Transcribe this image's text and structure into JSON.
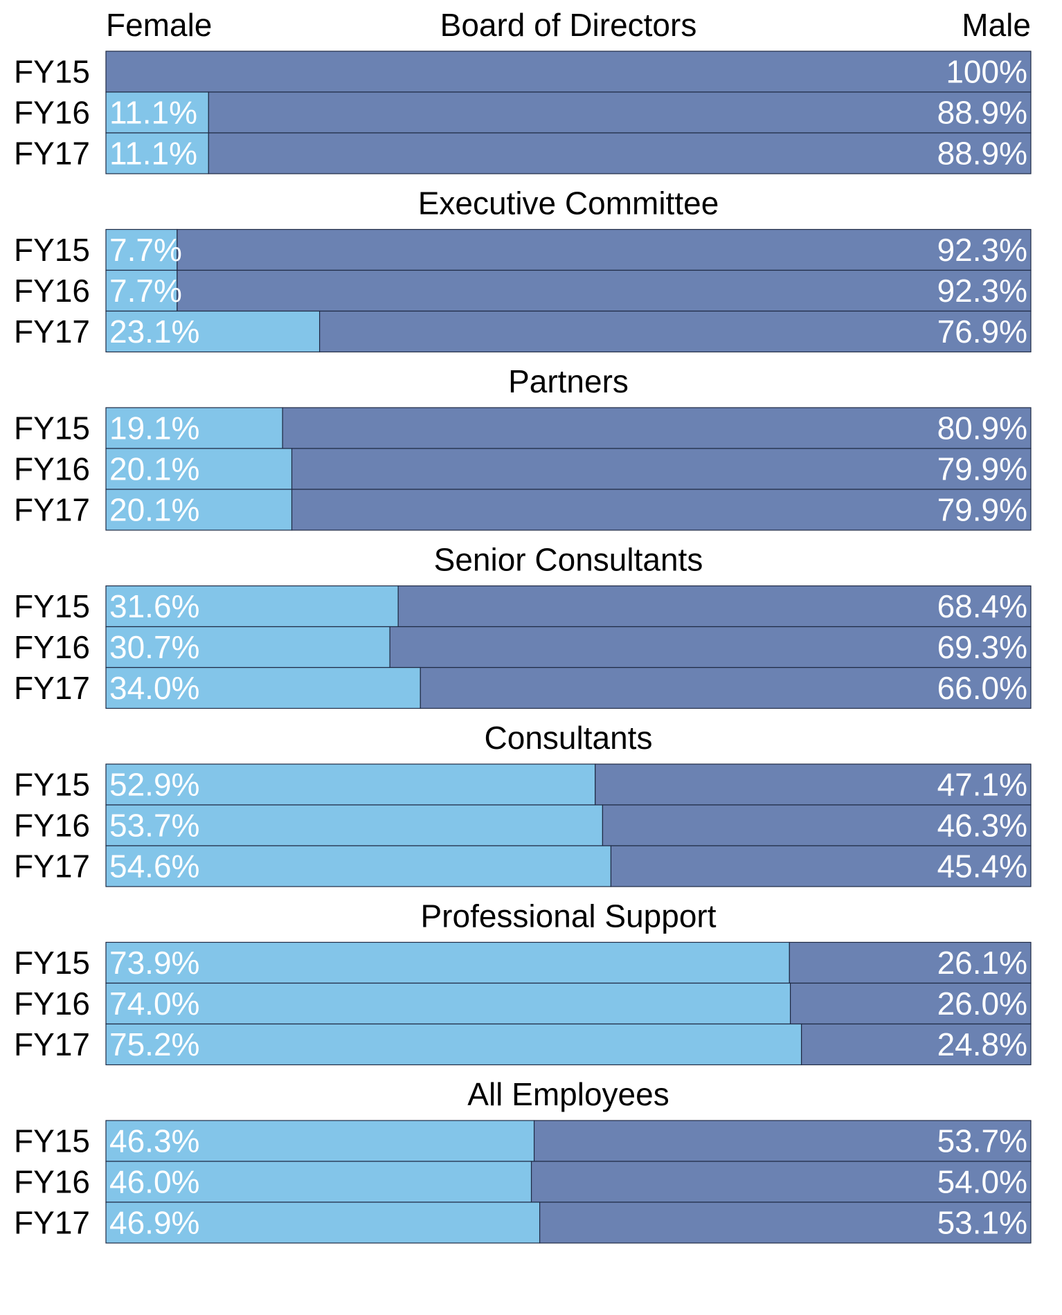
{
  "header": {
    "left_label": "Female",
    "right_label": "Male"
  },
  "colors": {
    "female": "#83c5e9",
    "male": "#6b82b2",
    "border": "#1f2a44",
    "value_text": "#ffffff",
    "label_text": "#000000"
  },
  "chart_data": {
    "type": "bar",
    "stacked": "100%",
    "orientation": "horizontal",
    "series_names": [
      "Female",
      "Male"
    ],
    "groups": [
      {
        "title": "Board of Directors",
        "rows": [
          {
            "category": "FY15",
            "female": 0,
            "male": 100,
            "female_label": "",
            "male_label": "100%"
          },
          {
            "category": "FY16",
            "female": 11.1,
            "male": 88.9,
            "female_label": "11.1%",
            "male_label": "88.9%"
          },
          {
            "category": "FY17",
            "female": 11.1,
            "male": 88.9,
            "female_label": "11.1%",
            "male_label": "88.9%"
          }
        ]
      },
      {
        "title": "Executive Committee",
        "rows": [
          {
            "category": "FY15",
            "female": 7.7,
            "male": 92.3,
            "female_label": "7.7%",
            "male_label": "92.3%"
          },
          {
            "category": "FY16",
            "female": 7.7,
            "male": 92.3,
            "female_label": "7.7%",
            "male_label": "92.3%"
          },
          {
            "category": "FY17",
            "female": 23.1,
            "male": 76.9,
            "female_label": "23.1%",
            "male_label": "76.9%"
          }
        ]
      },
      {
        "title": "Partners",
        "rows": [
          {
            "category": "FY15",
            "female": 19.1,
            "male": 80.9,
            "female_label": "19.1%",
            "male_label": "80.9%"
          },
          {
            "category": "FY16",
            "female": 20.1,
            "male": 79.9,
            "female_label": "20.1%",
            "male_label": "79.9%"
          },
          {
            "category": "FY17",
            "female": 20.1,
            "male": 79.9,
            "female_label": "20.1%",
            "male_label": "79.9%"
          }
        ]
      },
      {
        "title": "Senior Consultants",
        "rows": [
          {
            "category": "FY15",
            "female": 31.6,
            "male": 68.4,
            "female_label": "31.6%",
            "male_label": "68.4%"
          },
          {
            "category": "FY16",
            "female": 30.7,
            "male": 69.3,
            "female_label": "30.7%",
            "male_label": "69.3%"
          },
          {
            "category": "FY17",
            "female": 34.0,
            "male": 66.0,
            "female_label": "34.0%",
            "male_label": "66.0%"
          }
        ]
      },
      {
        "title": "Consultants",
        "rows": [
          {
            "category": "FY15",
            "female": 52.9,
            "male": 47.1,
            "female_label": "52.9%",
            "male_label": "47.1%"
          },
          {
            "category": "FY16",
            "female": 53.7,
            "male": 46.3,
            "female_label": "53.7%",
            "male_label": "46.3%"
          },
          {
            "category": "FY17",
            "female": 54.6,
            "male": 45.4,
            "female_label": "54.6%",
            "male_label": "45.4%"
          }
        ]
      },
      {
        "title": "Professional Support",
        "rows": [
          {
            "category": "FY15",
            "female": 73.9,
            "male": 26.1,
            "female_label": "73.9%",
            "male_label": "26.1%"
          },
          {
            "category": "FY16",
            "female": 74.0,
            "male": 26.0,
            "female_label": "74.0%",
            "male_label": "26.0%"
          },
          {
            "category": "FY17",
            "female": 75.2,
            "male": 24.8,
            "female_label": "75.2%",
            "male_label": "24.8%"
          }
        ]
      },
      {
        "title": "All Employees",
        "rows": [
          {
            "category": "FY15",
            "female": 46.3,
            "male": 53.7,
            "female_label": "46.3%",
            "male_label": "53.7%"
          },
          {
            "category": "FY16",
            "female": 46.0,
            "male": 54.0,
            "female_label": "46.0%",
            "male_label": "54.0%"
          },
          {
            "category": "FY17",
            "female": 46.9,
            "male": 53.1,
            "female_label": "46.9%",
            "male_label": "53.1%"
          }
        ]
      }
    ]
  }
}
